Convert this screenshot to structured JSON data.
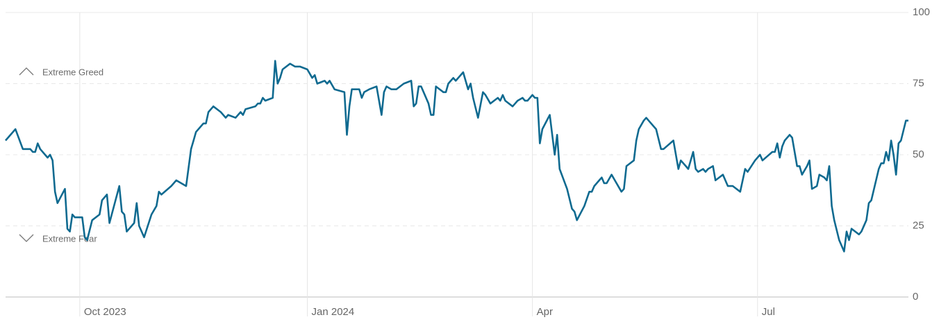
{
  "chart_data": {
    "type": "line",
    "annotations": [
      "Extreme Greed",
      "Extreme Fear"
    ],
    "x": [
      0,
      4,
      7,
      10,
      11,
      12,
      13,
      14,
      17,
      18,
      19,
      20,
      21,
      24,
      25,
      26,
      27,
      28,
      31,
      32,
      33,
      35,
      38,
      39,
      41,
      42,
      46,
      47,
      48,
      49,
      52,
      53,
      54,
      56,
      59,
      61,
      62,
      63,
      67,
      68,
      69,
      73,
      75,
      76,
      77,
      80,
      81,
      82,
      84,
      87,
      89,
      90,
      93,
      95,
      96,
      97,
      101,
      102,
      103,
      104,
      105,
      108,
      109,
      110,
      111,
      112,
      115,
      117,
      119,
      122,
      124,
      125,
      126,
      129,
      130,
      131,
      133,
      137,
      138,
      139,
      140,
      143,
      144,
      145,
      147,
      150,
      152,
      153,
      154,
      156,
      158,
      161,
      164,
      165,
      166,
      167,
      168,
      171,
      172,
      173,
      174,
      177,
      178,
      179,
      180,
      181,
      182,
      185,
      187,
      188,
      189,
      191,
      193,
      194,
      196,
      199,
      200,
      201,
      202,
      205,
      206,
      207,
      209,
      210,
      211,
      213,
      214,
      215,
      216,
      217,
      220,
      222,
      223,
      224,
      227,
      229,
      230,
      231,
      234,
      236,
      237,
      238,
      240,
      241,
      242,
      243,
      245,
      247,
      249,
      250,
      251,
      254,
      255,
      256,
      258,
      259,
      260,
      263,
      265,
      266,
      270,
      272,
      273,
      275,
      276,
      278,
      279,
      280,
      282,
      283,
      284,
      286,
      287,
      290,
      292,
      294,
      297,
      299,
      300,
      303,
      305,
      306,
      310,
      311,
      312,
      313,
      314,
      315,
      317,
      318,
      320,
      321,
      322,
      324,
      325,
      326,
      328,
      329,
      331,
      332,
      333,
      334,
      335,
      337,
      339,
      340,
      341,
      342,
      345,
      346,
      348,
      349,
      350,
      353,
      354,
      355,
      356,
      357,
      358,
      359,
      360,
      361,
      362,
      364,
      365
    ],
    "values": [
      55,
      59,
      52,
      52,
      51,
      51,
      54,
      52,
      49,
      50,
      48,
      37,
      33,
      38,
      24,
      23,
      29,
      28,
      28,
      21,
      20,
      27,
      29,
      34,
      36,
      26,
      39,
      30,
      29,
      23,
      26,
      33,
      25,
      21,
      29,
      32,
      37,
      36,
      39,
      40,
      41,
      39,
      52,
      55,
      58,
      61,
      61,
      65,
      67,
      65,
      63,
      64,
      63,
      65,
      64,
      66,
      67,
      68,
      68,
      70,
      69,
      70,
      83,
      75,
      77,
      80,
      82,
      81,
      81,
      80,
      77,
      78,
      75,
      76,
      75,
      76,
      73,
      72,
      57,
      67,
      73,
      73,
      70,
      72,
      73,
      74,
      64,
      72,
      74,
      73,
      73,
      75,
      76,
      67,
      68,
      74,
      74,
      68,
      64,
      64,
      74,
      72,
      72,
      75,
      76,
      77,
      76,
      79,
      73,
      75,
      70,
      63,
      72,
      71,
      68,
      70,
      69,
      71,
      69,
      67,
      68,
      69,
      70,
      69,
      69,
      71,
      70,
      70,
      54,
      59,
      64,
      50,
      57,
      45,
      38,
      31,
      30,
      27,
      32,
      37,
      37,
      39,
      41,
      42,
      40,
      40,
      43,
      40,
      37,
      38,
      46,
      48,
      55,
      59,
      62,
      63,
      62,
      59,
      52,
      52,
      55,
      45,
      48,
      46,
      45,
      51,
      45,
      44,
      45,
      44,
      45,
      46,
      41,
      43,
      39,
      39,
      37,
      45,
      44,
      48,
      50,
      48,
      51,
      51,
      54,
      49,
      53,
      55,
      57,
      56,
      46,
      46,
      43,
      46,
      48,
      38,
      39,
      43,
      42,
      41,
      46,
      32,
      27,
      20,
      16,
      23,
      20,
      24,
      22,
      23,
      27,
      33,
      34,
      45,
      47,
      47,
      51,
      48,
      55,
      50,
      43,
      54,
      55,
      62,
      62
    ],
    "color": "#0f6a90",
    "xlim": [
      0,
      365
    ],
    "xticks": [
      {
        "value": 30,
        "label": "Oct 2023"
      },
      {
        "value": 122,
        "label": "Jan 2024"
      },
      {
        "value": 213,
        "label": "Apr"
      },
      {
        "value": 304,
        "label": "Jul"
      }
    ],
    "ylim": [
      0,
      100
    ],
    "yticks": [
      0,
      25,
      50,
      75,
      100
    ],
    "grid": true
  }
}
